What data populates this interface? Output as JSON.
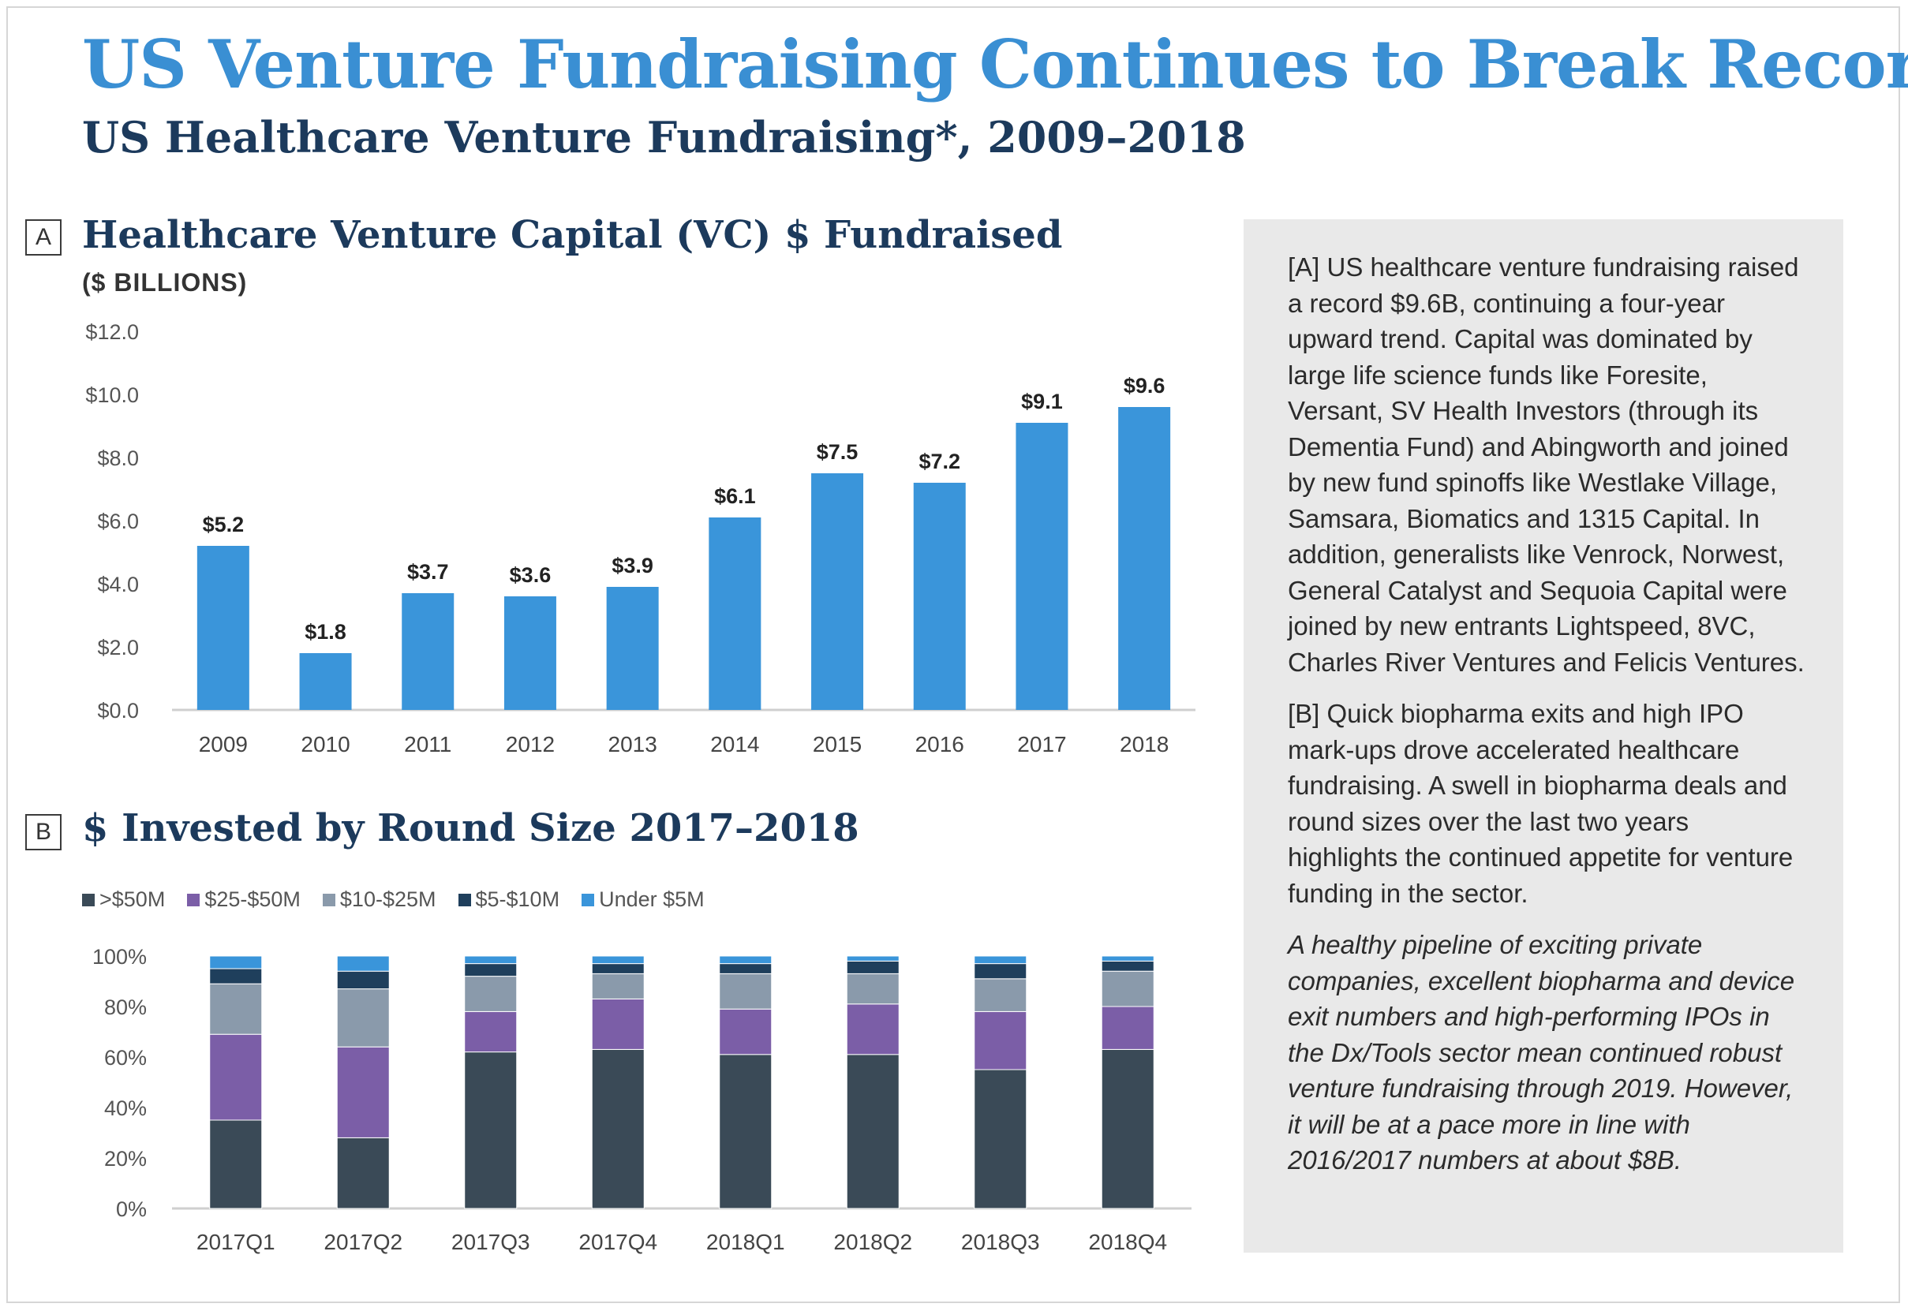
{
  "header": {
    "title": "US Venture Fundraising Continues to Break Records",
    "subtitle": "US Healthcare Venture Fundraising*, 2009–2018"
  },
  "panel_a": {
    "badge": "A",
    "title": "Healthcare Venture Capital (VC) $ Fundraised",
    "units": "($ BILLIONS)"
  },
  "panel_b": {
    "badge": "B",
    "title": "$ Invested by Round Size 2017–2018"
  },
  "legend": [
    {
      "label": ">$50M",
      "color": "#3a4a57"
    },
    {
      "label": "$25-$50M",
      "color": "#7b5ea7"
    },
    {
      "label": "$10-$25M",
      "color": "#8a9aab"
    },
    {
      "label": "$5-$10M",
      "color": "#1f3f5c"
    },
    {
      "label": "Under $5M",
      "color": "#3a95da"
    }
  ],
  "sidebar": {
    "para_a": "[A] US healthcare venture fundraising raised a record $9.6B, continuing a four-year upward trend. Capital was dominated by large life science funds like Foresite, Versant, SV Health Investors (through its Dementia Fund) and Abingworth and joined by new fund spinoffs like Westlake Village, Samsara, Biomatics and 1315 Capital. In addition, generalists like Venrock, Norwest, General Catalyst and Sequoia Capital were joined by new entrants Lightspeed, 8VC, Charles River Ventures and Felicis Ventures.",
    "para_b": "[B] Quick biopharma exits and high IPO mark-ups drove accelerated healthcare fundraising. A swell in biopharma deals and round sizes over the last two years highlights the continued appetite for venture funding in the sector.",
    "para_outlook": "A healthy pipeline of exciting private companies, excellent biopharma and device exit numbers and high-performing IPOs in the Dx/Tools sector mean continued robust venture fundraising through 2019. However, it will be at a pace more in line with 2016/2017 numbers at about $8B."
  },
  "chart_data": [
    {
      "type": "bar",
      "title": "Healthcare Venture Capital (VC) $ Fundraised",
      "ylabel": "($ BILLIONS)",
      "categories": [
        "2009",
        "2010",
        "2011",
        "2012",
        "2013",
        "2014",
        "2015",
        "2016",
        "2017",
        "2018"
      ],
      "values": [
        5.2,
        1.8,
        3.7,
        3.6,
        3.9,
        6.1,
        7.5,
        7.2,
        9.1,
        9.6
      ],
      "data_labels": [
        "$5.2",
        "$1.8",
        "$3.7",
        "$3.6",
        "$3.9",
        "$6.1",
        "$7.5",
        "$7.2",
        "$9.1",
        "$9.6"
      ],
      "ylim": [
        0,
        12
      ],
      "yticks": [
        "$0.0",
        "$2.0",
        "$4.0",
        "$6.0",
        "$8.0",
        "$10.0",
        "$12.0"
      ],
      "color": "#3a95da",
      "grid": false
    },
    {
      "type": "bar",
      "stacked": true,
      "title": "$ Invested by Round Size 2017–2018",
      "categories": [
        "2017Q1",
        "2017Q2",
        "2017Q3",
        "2017Q4",
        "2018Q1",
        "2018Q2",
        "2018Q3",
        "2018Q4"
      ],
      "ylim": [
        0,
        100
      ],
      "yticks": [
        "0%",
        "20%",
        "40%",
        "60%",
        "80%",
        "100%"
      ],
      "legend_position": "top-left",
      "grid": false,
      "series": [
        {
          "name": ">$50M",
          "values": [
            35,
            28,
            62,
            63,
            61,
            61,
            55,
            63
          ]
        },
        {
          "name": "$25-$50M",
          "values": [
            34,
            36,
            16,
            20,
            18,
            20,
            23,
            17
          ]
        },
        {
          "name": "$10-$25M",
          "values": [
            20,
            23,
            14,
            10,
            14,
            12,
            13,
            14
          ]
        },
        {
          "name": "$5-$10M",
          "values": [
            6,
            7,
            5,
            4,
            4,
            5,
            6,
            4
          ]
        },
        {
          "name": "Under $5M",
          "values": [
            5,
            6,
            3,
            3,
            3,
            2,
            3,
            2
          ]
        }
      ]
    }
  ]
}
